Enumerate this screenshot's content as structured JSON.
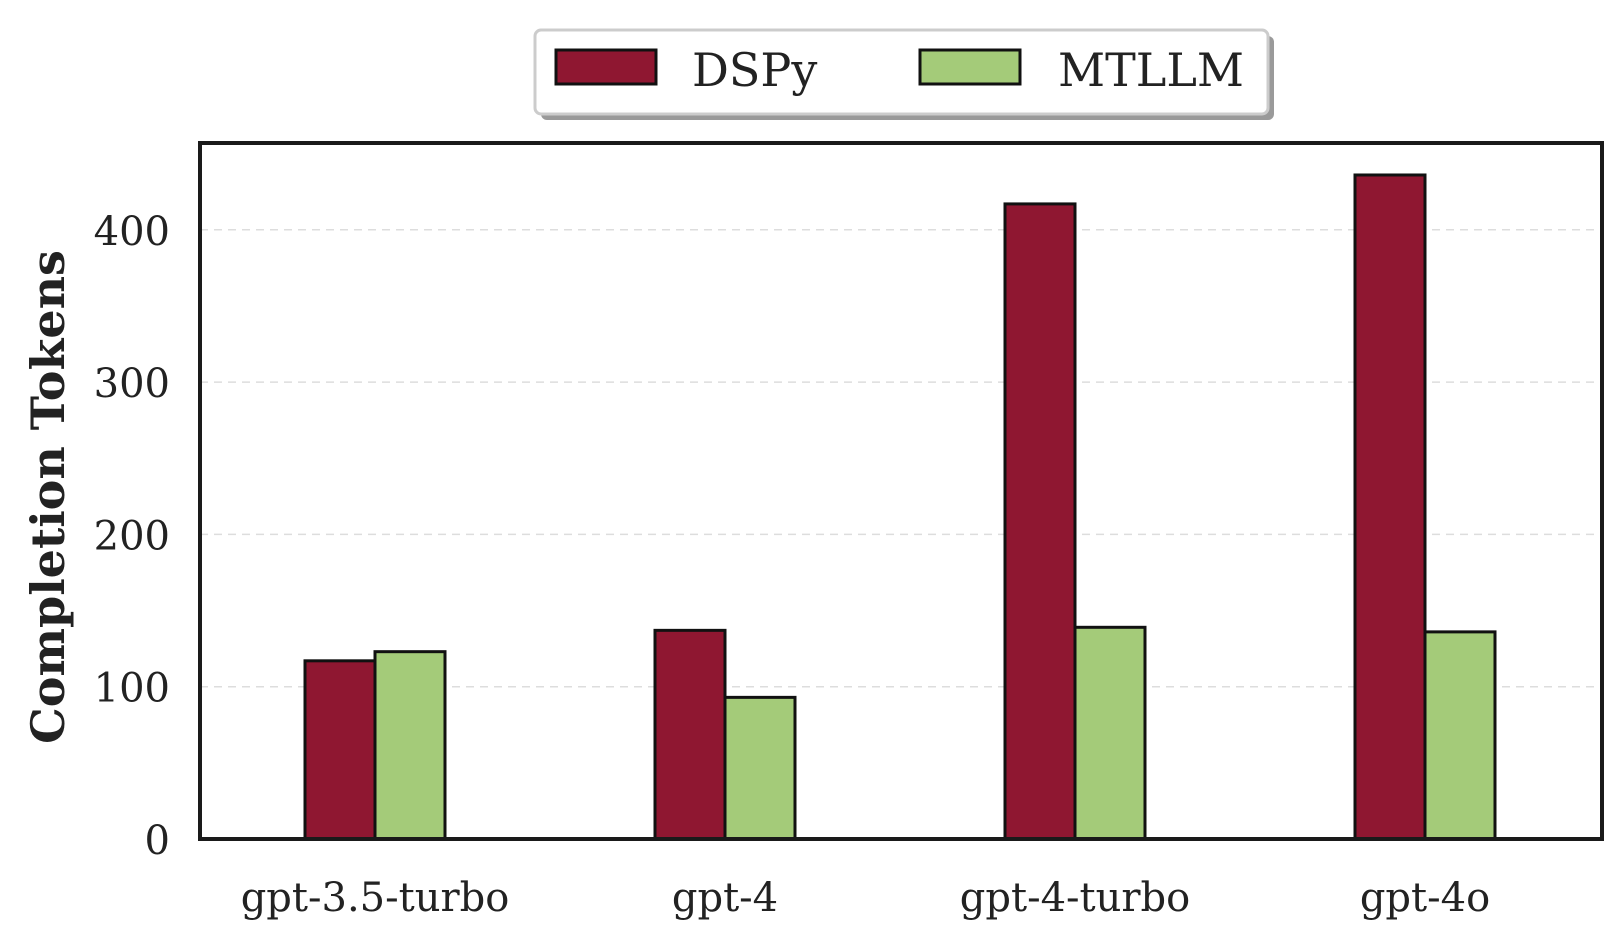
{
  "chart_data": {
    "type": "bar",
    "title": "",
    "xlabel": "",
    "ylabel": "Completion Tokens",
    "categories": [
      "gpt-3.5-turbo",
      "gpt-4",
      "gpt-4-turbo",
      "gpt-4o"
    ],
    "series": [
      {
        "name": "DSPy",
        "values": [
          117,
          137,
          417,
          436
        ],
        "color": "#8f1731"
      },
      {
        "name": "MTLLM",
        "values": [
          123,
          93,
          139,
          136
        ],
        "color": "#a4cb79"
      }
    ],
    "ylim": [
      0,
      457
    ],
    "yticks": [
      0,
      100,
      200,
      300,
      400
    ],
    "grid": true,
    "legend_position": "top-center"
  }
}
